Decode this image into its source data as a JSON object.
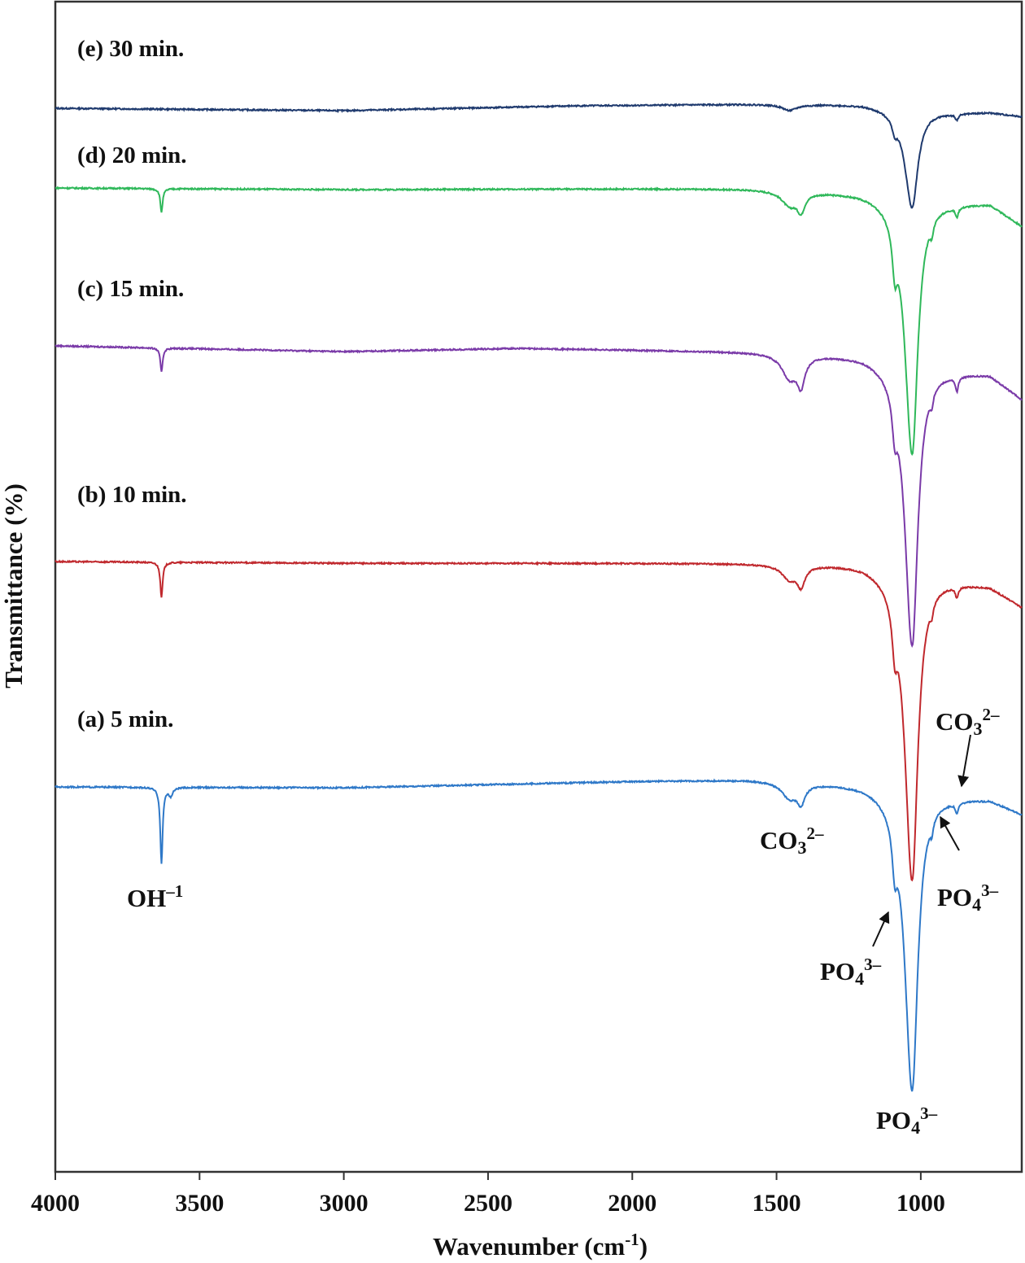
{
  "chart_data": {
    "type": "line",
    "title": "",
    "xlabel": "Wavenumber (cm-1)",
    "xlabel_parts": {
      "base": "Wavenumber (cm",
      "sup": "-1",
      "end": ")"
    },
    "ylabel": "Transmittance (%)",
    "xlim": [
      4000,
      650
    ],
    "ylim": [
      0,
      100
    ],
    "y_units": "arbitrary (stacked offsets)",
    "x_ticks": [
      4000,
      3500,
      3000,
      2500,
      2000,
      1500,
      1000
    ],
    "x_tick_labels": [
      "4000",
      "3500",
      "3000",
      "2500",
      "2000",
      "1500",
      "1000"
    ],
    "grid": false,
    "legend": "none (inline labels at top-left of each curve)",
    "model": "y = baseline(x) - sum of Lorentzian bands [center cm-1, depth, half-width left, half-width right]",
    "series": [
      {
        "name": "(e) 30 min.",
        "color": "#1f3a6e",
        "baseline": [
          [
            4000,
            90.76
          ],
          [
            3000,
            90.56
          ],
          [
            2200,
            90.97
          ],
          [
            1600,
            91.11
          ],
          [
            1200,
            91.11
          ],
          [
            900,
            90.42
          ],
          [
            760,
            90.42
          ],
          [
            650,
            90.07
          ]
        ],
        "bands": [
          [
            1455,
            0.5,
            30,
            30
          ],
          [
            1030,
            8.4,
            30,
            24
          ],
          [
            1090,
            1.0,
            10,
            10
          ],
          [
            875,
            0.5,
            6,
            6
          ]
        ]
      },
      {
        "name": "(d) 20 min.",
        "color": "#2fb85a",
        "baseline": [
          [
            4000,
            83.96
          ],
          [
            3000,
            83.82
          ],
          [
            2000,
            83.89
          ],
          [
            1600,
            83.89
          ],
          [
            1200,
            83.61
          ],
          [
            900,
            82.78
          ],
          [
            760,
            82.64
          ],
          [
            650,
            80.76
          ]
        ],
        "bands": [
          [
            3632,
            2.0,
            5,
            5
          ],
          [
            1455,
            1.2,
            32,
            32
          ],
          [
            1415,
            1.5,
            16,
            16
          ],
          [
            1030,
            21.8,
            30,
            24
          ],
          [
            1090,
            3.5,
            10,
            10
          ],
          [
            962,
            1.0,
            6,
            6
          ],
          [
            875,
            0.8,
            6,
            6
          ]
        ]
      },
      {
        "name": "(c) 15 min.",
        "color": "#7a3aa8",
        "baseline": [
          [
            4000,
            70.49
          ],
          [
            3000,
            70.0
          ],
          [
            2400,
            70.28
          ],
          [
            1600,
            70.0
          ],
          [
            1200,
            69.72
          ],
          [
            900,
            68.4
          ],
          [
            760,
            68.06
          ],
          [
            650,
            65.97
          ]
        ],
        "bands": [
          [
            3632,
            2.0,
            5,
            5
          ],
          [
            1455,
            2.0,
            32,
            32
          ],
          [
            1415,
            2.3,
            16,
            16
          ],
          [
            1030,
            24.0,
            30,
            24
          ],
          [
            1090,
            3.0,
            10,
            10
          ],
          [
            962,
            1.0,
            6,
            6
          ],
          [
            875,
            1.2,
            6,
            6
          ]
        ]
      },
      {
        "name": "(b) 10 min.",
        "color": "#c0282d",
        "baseline": [
          [
            4000,
            52.08
          ],
          [
            3000,
            51.94
          ],
          [
            2000,
            51.94
          ],
          [
            1600,
            51.94
          ],
          [
            1200,
            51.94
          ],
          [
            900,
            50.56
          ],
          [
            760,
            50.0
          ],
          [
            650,
            48.26
          ]
        ],
        "bands": [
          [
            3632,
            3.0,
            5,
            5
          ],
          [
            1455,
            1.2,
            32,
            32
          ],
          [
            1415,
            1.6,
            16,
            16
          ],
          [
            1030,
            26.2,
            30,
            24
          ],
          [
            1090,
            3.5,
            10,
            10
          ],
          [
            962,
            0.9,
            6,
            6
          ],
          [
            875,
            0.9,
            6,
            6
          ]
        ]
      },
      {
        "name": "(a) 5 min.",
        "color": "#2e78c8",
        "baseline": [
          [
            4000,
            32.85
          ],
          [
            3000,
            32.78
          ],
          [
            2000,
            33.33
          ],
          [
            1600,
            33.47
          ],
          [
            1200,
            33.13
          ],
          [
            900,
            32.08
          ],
          [
            760,
            31.81
          ],
          [
            650,
            30.56
          ]
        ],
        "bands": [
          [
            3632,
            6.5,
            5,
            5
          ],
          [
            3600,
            0.7,
            8,
            8
          ],
          [
            1455,
            1.3,
            32,
            32
          ],
          [
            1415,
            1.5,
            16,
            16
          ],
          [
            1030,
            25.5,
            30,
            24
          ],
          [
            1090,
            3.5,
            10,
            10
          ],
          [
            962,
            1.0,
            6,
            6
          ],
          [
            875,
            0.9,
            6,
            6
          ]
        ]
      }
    ],
    "annotations": [
      {
        "id": "oh",
        "base": "OH",
        "sub": "",
        "sup": "–1",
        "target_cm": 3632
      },
      {
        "id": "co3-1420",
        "base": "CO",
        "sub": "3",
        "sup": "2–",
        "target_cm": 1420
      },
      {
        "id": "co3-875",
        "base": "CO",
        "sub": "3",
        "sup": "2–",
        "target_cm": 875,
        "arrow": true
      },
      {
        "id": "po4-962",
        "base": "PO",
        "sub": "4",
        "sup": "3–",
        "target_cm": 962,
        "arrow": true
      },
      {
        "id": "po4-1090",
        "base": "PO",
        "sub": "4",
        "sup": "3–",
        "target_cm": 1090,
        "arrow": true
      },
      {
        "id": "po4-1030",
        "base": "PO",
        "sub": "4",
        "sup": "3–",
        "target_cm": 1030
      }
    ]
  }
}
